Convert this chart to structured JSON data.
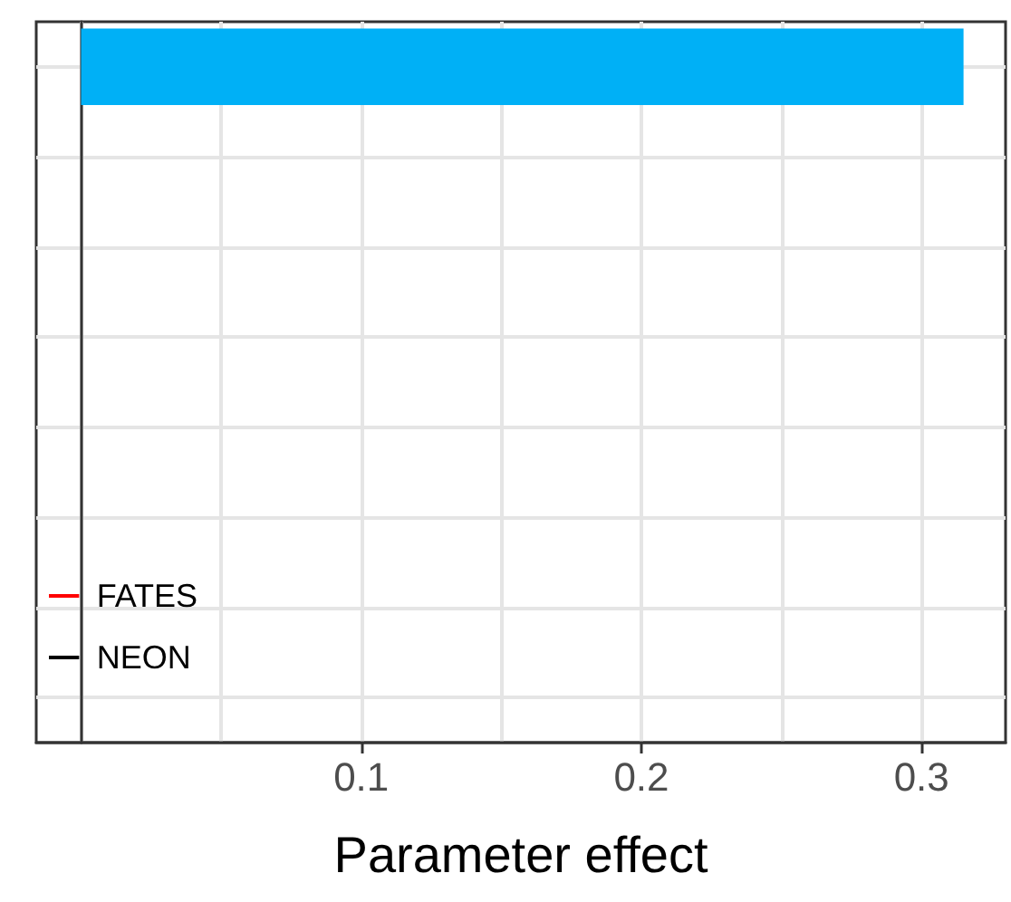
{
  "chart_data": {
    "type": "bar",
    "orientation": "horizontal",
    "xlabel": "Parameter effect",
    "categories": [
      null,
      null,
      null,
      null,
      null,
      null,
      null,
      null
    ],
    "series": [
      {
        "color": "#00b0f6",
        "values": [
          0.315,
          null,
          null,
          null,
          null,
          null,
          null,
          null
        ]
      },
      {
        "type": "line",
        "name": "FATES",
        "color": "#ff0000",
        "values": [
          null,
          null,
          null,
          null,
          null,
          null,
          null,
          null
        ]
      },
      {
        "type": "line",
        "name": "NEON",
        "color": "#000000",
        "values": [
          null,
          null,
          null,
          null,
          null,
          null,
          null,
          null
        ]
      }
    ],
    "xlim": [
      -0.016,
      0.33
    ],
    "xticks": [
      0.1,
      0.2,
      0.3
    ],
    "grid": true,
    "legend": "bottom left",
    "tick_labels": "x"
  }
}
